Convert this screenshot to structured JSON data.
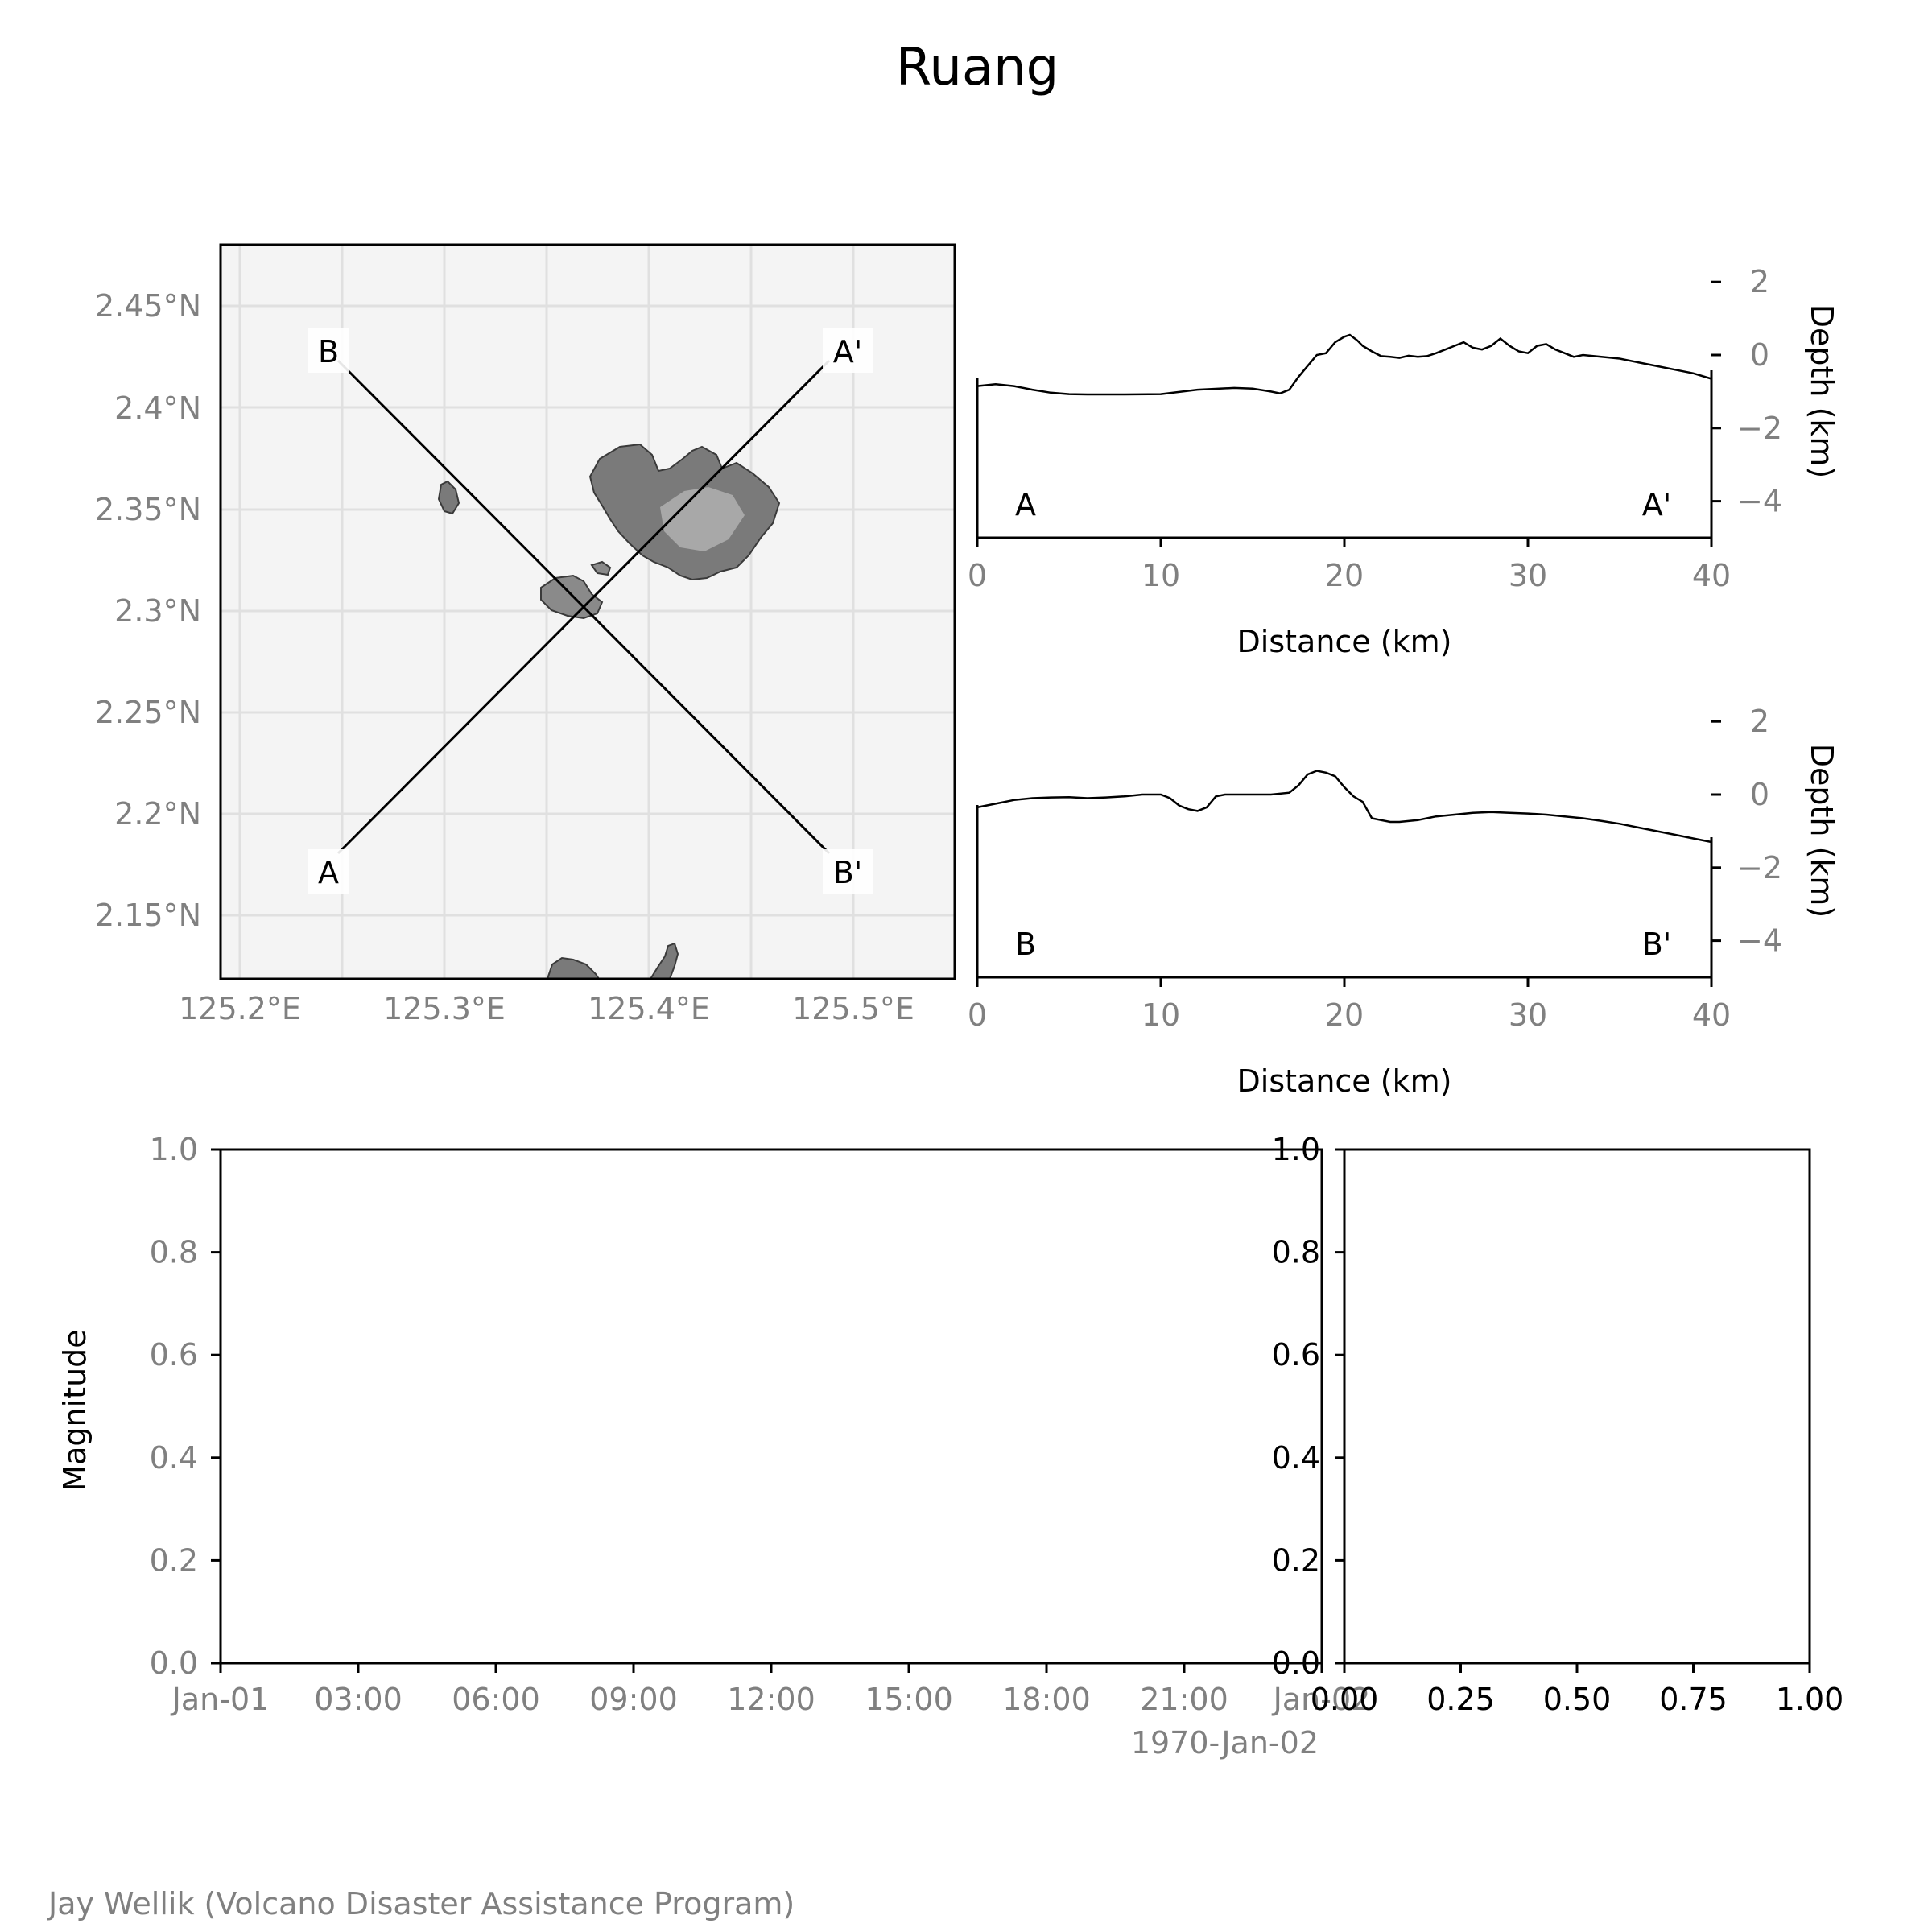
{
  "title": "Ruang",
  "credit": "Jay Wellik (Volcano Disaster Assistance Program)",
  "map": {
    "lon_ticks": [
      "125.2°E",
      "125.3°E",
      "125.4°E",
      "125.5°E"
    ],
    "lat_ticks": [
      "2.45°N",
      "2.4°N",
      "2.35°N",
      "2.3°N",
      "2.25°N",
      "2.2°N",
      "2.15°N"
    ],
    "profile_labels": {
      "A": "A",
      "A_prime": "A'",
      "B": "B",
      "B_prime": "B'"
    }
  },
  "chart_data": [
    {
      "type": "line",
      "name": "profile-A",
      "start_label": "A",
      "end_label": "A'",
      "xlabel": "Distance (km)",
      "ylabel": "Depth (km)",
      "xlim": [
        0,
        40
      ],
      "ylim": [
        -5,
        2.5
      ],
      "xticks": [
        "0",
        "10",
        "20",
        "30",
        "40"
      ],
      "yticks": [
        "2",
        "0",
        "−2",
        "−4"
      ],
      "x": [
        0,
        1,
        2,
        3,
        4,
        5,
        6,
        8,
        10,
        12,
        14,
        15,
        16,
        16.5,
        17,
        17.5,
        18,
        18.5,
        19,
        19.5,
        20,
        20.3,
        20.7,
        21,
        21.5,
        22,
        22.5,
        23,
        23.5,
        24,
        24.5,
        25,
        25.5,
        26,
        26.5,
        27,
        27.5,
        28,
        28.5,
        29,
        29.5,
        30,
        30.5,
        31,
        31.5,
        32,
        32.5,
        33,
        34,
        35,
        36,
        37,
        38,
        39,
        40
      ],
      "y": [
        -0.85,
        -0.8,
        -0.85,
        -0.95,
        -1.03,
        -1.07,
        -1.08,
        -1.08,
        -1.07,
        -0.95,
        -0.9,
        -0.92,
        -1.0,
        -1.05,
        -0.95,
        -0.6,
        -0.3,
        0.0,
        0.05,
        0.35,
        0.5,
        0.55,
        0.4,
        0.25,
        0.1,
        -0.03,
        -0.05,
        -0.08,
        -0.02,
        -0.05,
        -0.03,
        0.05,
        0.15,
        0.25,
        0.35,
        0.2,
        0.15,
        0.25,
        0.45,
        0.25,
        0.1,
        0.05,
        0.25,
        0.3,
        0.15,
        0.05,
        -0.05,
        0.0,
        -0.05,
        -0.1,
        -0.2,
        -0.3,
        -0.4,
        -0.5,
        -0.65
      ]
    },
    {
      "type": "line",
      "name": "profile-B",
      "start_label": "B",
      "end_label": "B'",
      "xlabel": "Distance (km)",
      "ylabel": "Depth (km)",
      "xlim": [
        0,
        40
      ],
      "ylim": [
        -5,
        2.5
      ],
      "xticks": [
        "0",
        "10",
        "20",
        "30",
        "40"
      ],
      "yticks": [
        "2",
        "0",
        "−2",
        "−4"
      ],
      "x": [
        0,
        1,
        2,
        3,
        4,
        5,
        6,
        7,
        8,
        9,
        10,
        10.5,
        11,
        11.5,
        12,
        12.5,
        13,
        13.5,
        14,
        15,
        16,
        17,
        17.5,
        18,
        18.5,
        19,
        19.5,
        20,
        20.5,
        21,
        21.5,
        22,
        22.5,
        23,
        24,
        25,
        26,
        27,
        28,
        29,
        30,
        31,
        32,
        33,
        34,
        35,
        36,
        37,
        38,
        39,
        40
      ],
      "y": [
        -0.35,
        -0.25,
        -0.15,
        -0.1,
        -0.08,
        -0.07,
        -0.1,
        -0.08,
        -0.05,
        0.0,
        0.0,
        -0.1,
        -0.3,
        -0.4,
        -0.45,
        -0.35,
        -0.05,
        0.0,
        0.0,
        0.0,
        0.0,
        0.05,
        0.25,
        0.55,
        0.65,
        0.6,
        0.5,
        0.2,
        -0.05,
        -0.2,
        -0.65,
        -0.7,
        -0.75,
        -0.75,
        -0.7,
        -0.6,
        -0.55,
        -0.5,
        -0.48,
        -0.5,
        -0.52,
        -0.55,
        -0.6,
        -0.65,
        -0.72,
        -0.8,
        -0.9,
        -1.0,
        -1.1,
        -1.2,
        -1.3
      ]
    },
    {
      "type": "scatter",
      "name": "magnitude-time",
      "ylabel": "Magnitude",
      "ylim": [
        0.0,
        1.0
      ],
      "yticks": [
        "0.0",
        "0.2",
        "0.4",
        "0.6",
        "0.8",
        "1.0"
      ],
      "xticks": [
        "Jan-01",
        "03:00",
        "06:00",
        "09:00",
        "12:00",
        "15:00",
        "18:00",
        "21:00",
        "Jan-02"
      ],
      "x_offset_label": "1970-Jan-02",
      "points": []
    },
    {
      "type": "scatter",
      "name": "side-panel",
      "xlim": [
        0.0,
        1.0
      ],
      "ylim": [
        0.0,
        1.0
      ],
      "xticks": [
        "0.00",
        "0.25",
        "0.50",
        "0.75",
        "1.00"
      ],
      "yticks": [
        "0.0",
        "0.2",
        "0.4",
        "0.6",
        "0.8",
        "1.0"
      ],
      "points": []
    }
  ]
}
